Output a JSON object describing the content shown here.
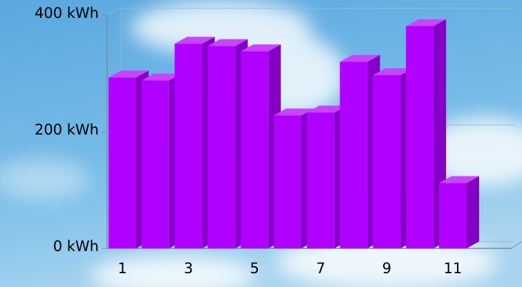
{
  "chart_data": {
    "type": "bar3d",
    "categories": [
      "1",
      null,
      "3",
      null,
      "5",
      null,
      "7",
      null,
      "9",
      null,
      "11"
    ],
    "values": [
      293,
      288,
      351,
      347,
      338,
      228,
      233,
      320,
      297,
      381,
      112
    ],
    "color": "#b000ff",
    "ylim": [
      0,
      400
    ],
    "yticks": [
      {
        "value": 0,
        "label": "0 kWh"
      },
      {
        "value": 200,
        "label": "200 kWh"
      },
      {
        "value": 400,
        "label": "400 kWh"
      }
    ],
    "grid": true
  }
}
